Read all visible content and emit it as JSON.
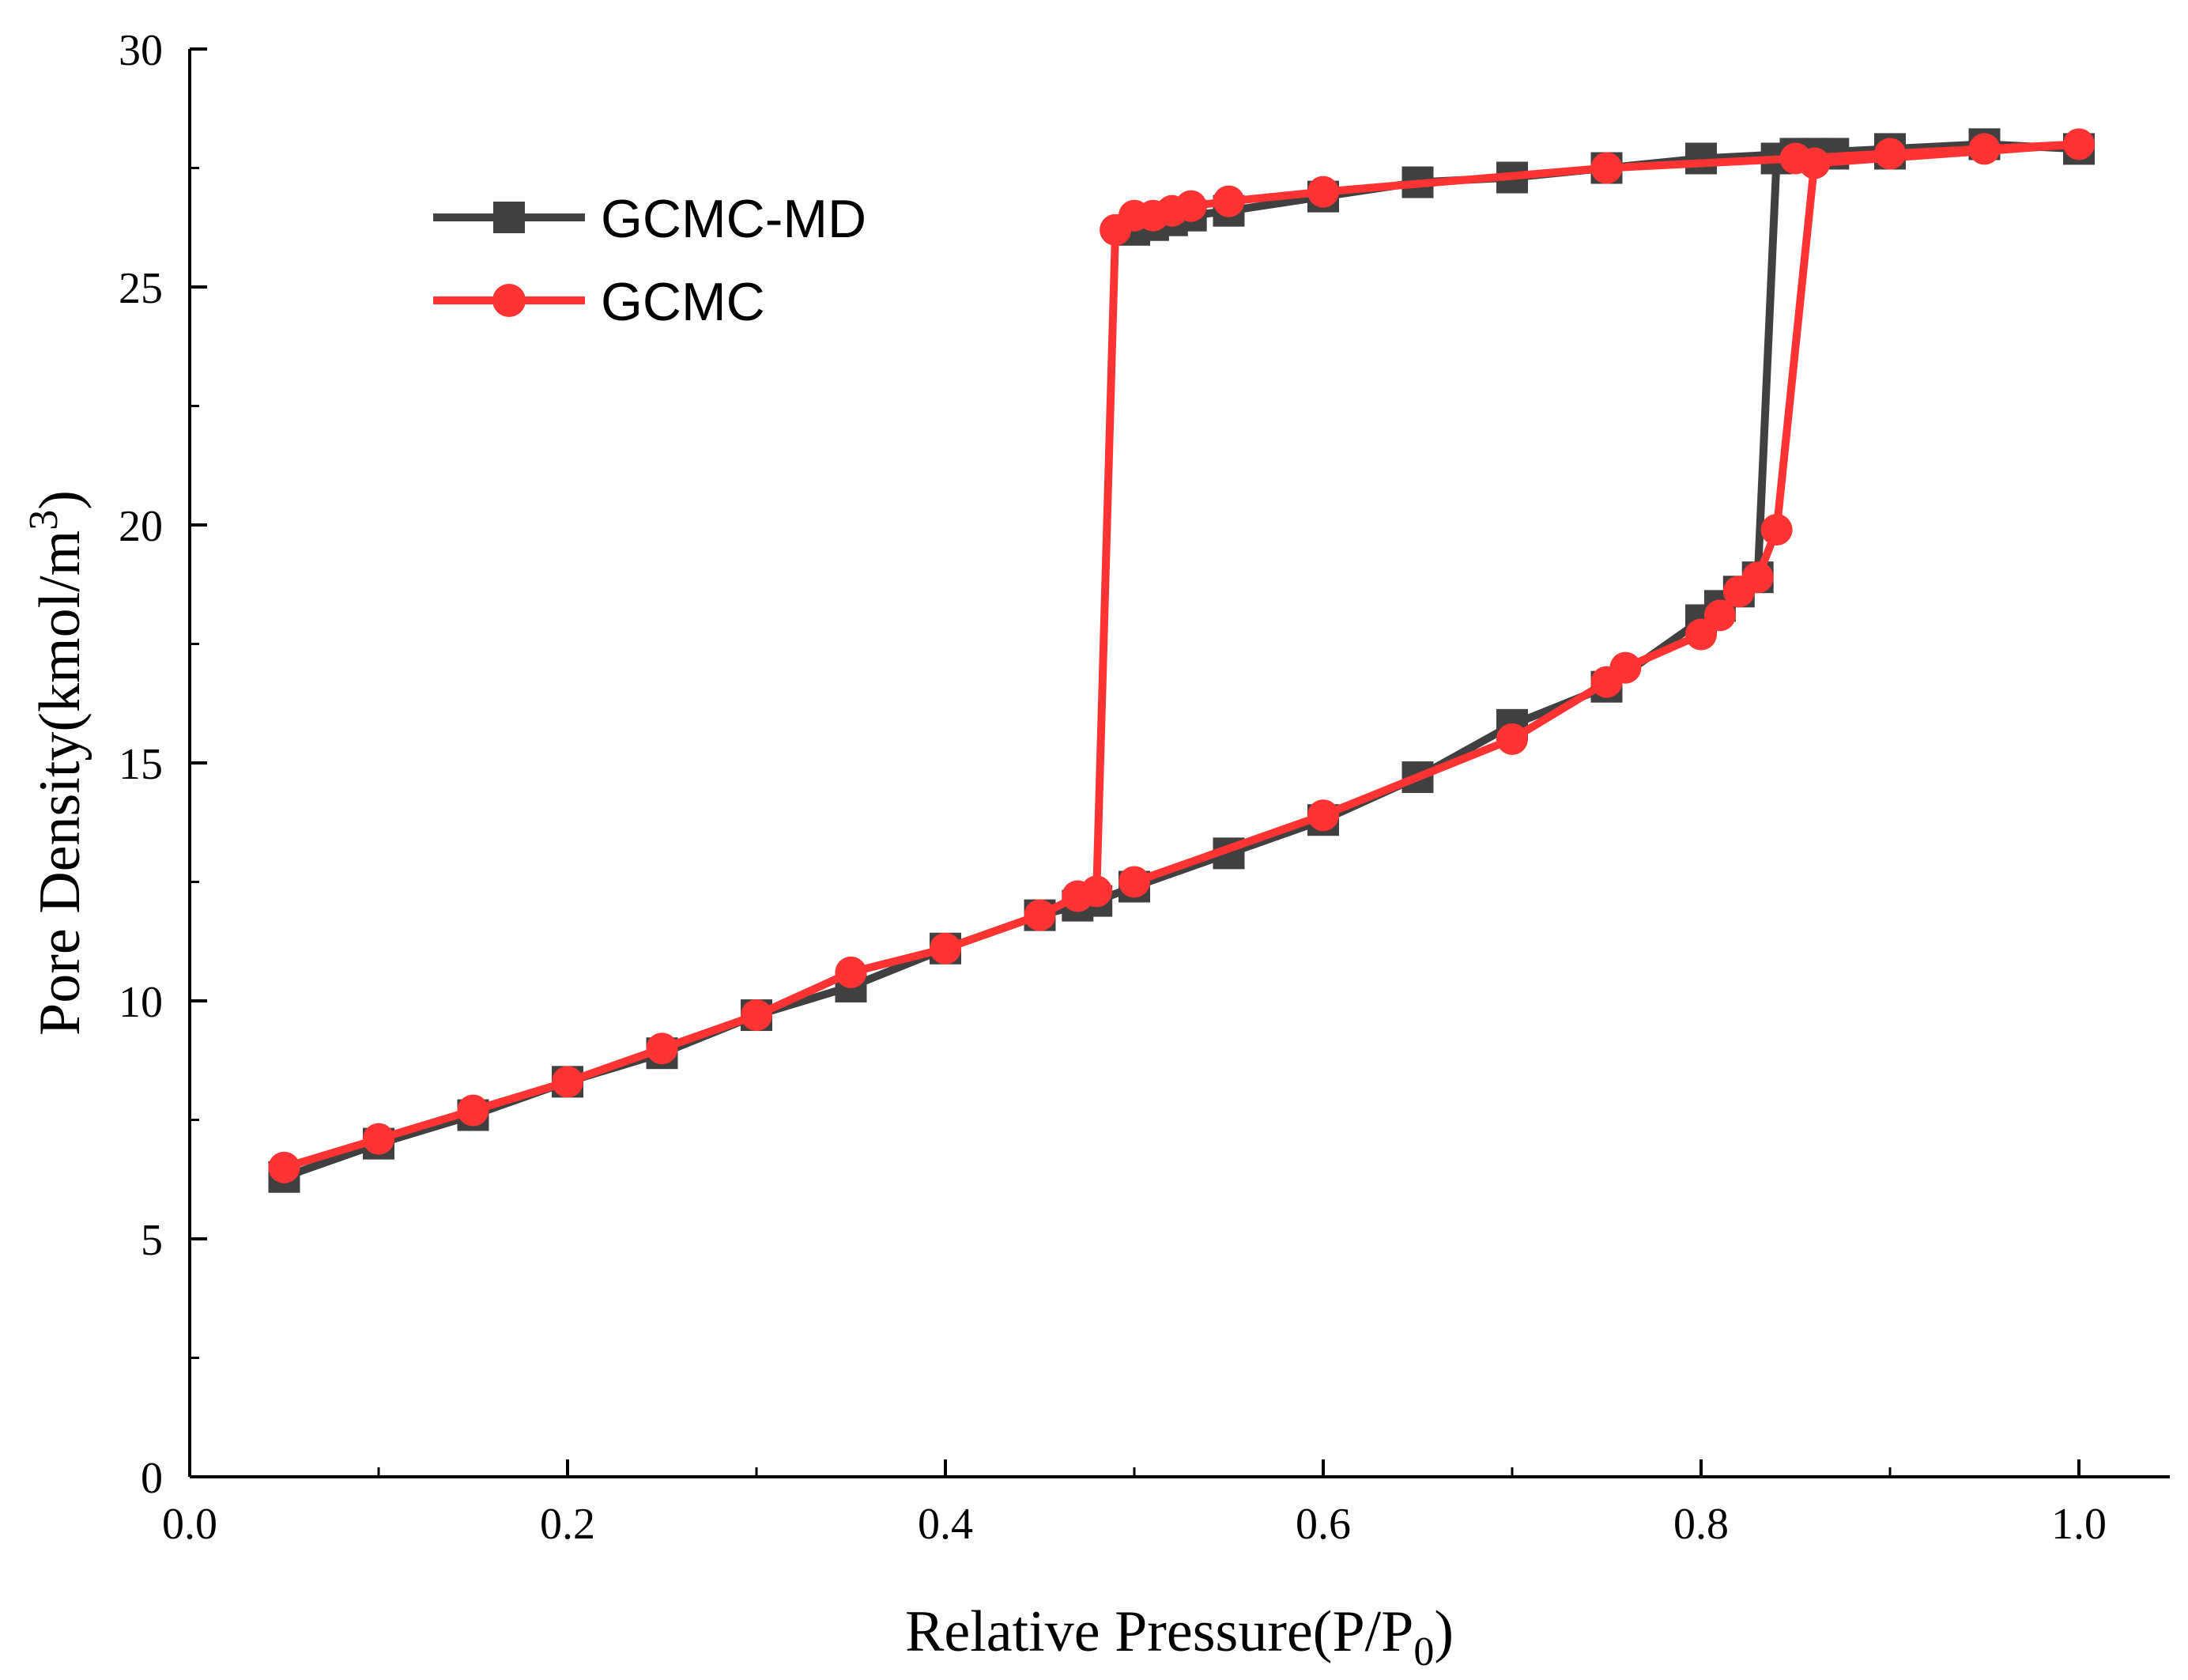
{
  "chart_data": {
    "type": "line",
    "title": "",
    "xlabel": "Relative Pressure(P/P",
    "xlabel_sub": "0",
    "xlabel_end": ")",
    "ylabel": "Pore Density(kmol/m",
    "ylabel_sup": "3",
    "ylabel_end": ")",
    "xlim": [
      0.0,
      1.05
    ],
    "ylim": [
      0,
      30
    ],
    "x_ticks": [
      "0.0",
      "0.2",
      "0.4",
      "0.6",
      "0.8",
      "1.0"
    ],
    "y_ticks": [
      "0",
      "5",
      "10",
      "15",
      "20",
      "25",
      "30"
    ],
    "grid": false,
    "legend_position": "top-left",
    "series": [
      {
        "name": "GCMC-MD",
        "color": "#404040",
        "marker": "square",
        "x": [
          0.05,
          0.1,
          0.15,
          0.2,
          0.25,
          0.3,
          0.35,
          0.4,
          0.45,
          0.47,
          0.48,
          0.5,
          0.55,
          0.6,
          0.65,
          0.7,
          0.75,
          0.8,
          0.81,
          0.82,
          0.83,
          0.84,
          0.86,
          0.87,
          0.9,
          0.95,
          1.0,
          0.95,
          0.9,
          0.85,
          0.8,
          0.75,
          0.7,
          0.65,
          0.6,
          0.55,
          0.53,
          0.52,
          0.51,
          0.5
        ],
        "y": [
          6.3,
          7.0,
          7.6,
          8.3,
          8.9,
          9.7,
          10.3,
          11.1,
          11.8,
          12.0,
          12.1,
          12.4,
          13.1,
          13.8,
          14.7,
          15.8,
          16.6,
          18.0,
          18.3,
          18.6,
          18.9,
          27.7,
          27.8,
          27.8,
          27.8,
          28.0,
          27.9,
          28.0,
          27.9,
          27.8,
          27.7,
          27.5,
          27.3,
          27.2,
          26.9,
          26.6,
          26.5,
          26.4,
          26.3,
          26.2
        ]
      },
      {
        "name": "GCMC",
        "color": "#ff3333",
        "marker": "circle",
        "x": [
          0.05,
          0.1,
          0.15,
          0.2,
          0.25,
          0.3,
          0.35,
          0.4,
          0.45,
          0.47,
          0.48,
          0.49,
          0.5,
          0.51,
          0.52,
          0.53,
          0.55,
          0.6,
          0.75,
          0.85,
          0.9,
          0.95,
          1.0,
          0.86,
          0.84,
          0.83,
          0.82,
          0.81,
          0.8,
          0.76,
          0.75,
          0.7,
          0.6,
          0.5
        ],
        "y": [
          6.5,
          7.1,
          7.7,
          8.3,
          9.0,
          9.7,
          10.6,
          11.1,
          11.8,
          12.2,
          12.3,
          26.2,
          26.5,
          26.5,
          26.6,
          26.7,
          26.8,
          27.0,
          27.5,
          27.7,
          27.8,
          27.9,
          28.0,
          27.6,
          19.9,
          18.9,
          18.6,
          18.1,
          17.7,
          17.0,
          16.7,
          15.5,
          13.9,
          12.5
        ]
      }
    ]
  }
}
